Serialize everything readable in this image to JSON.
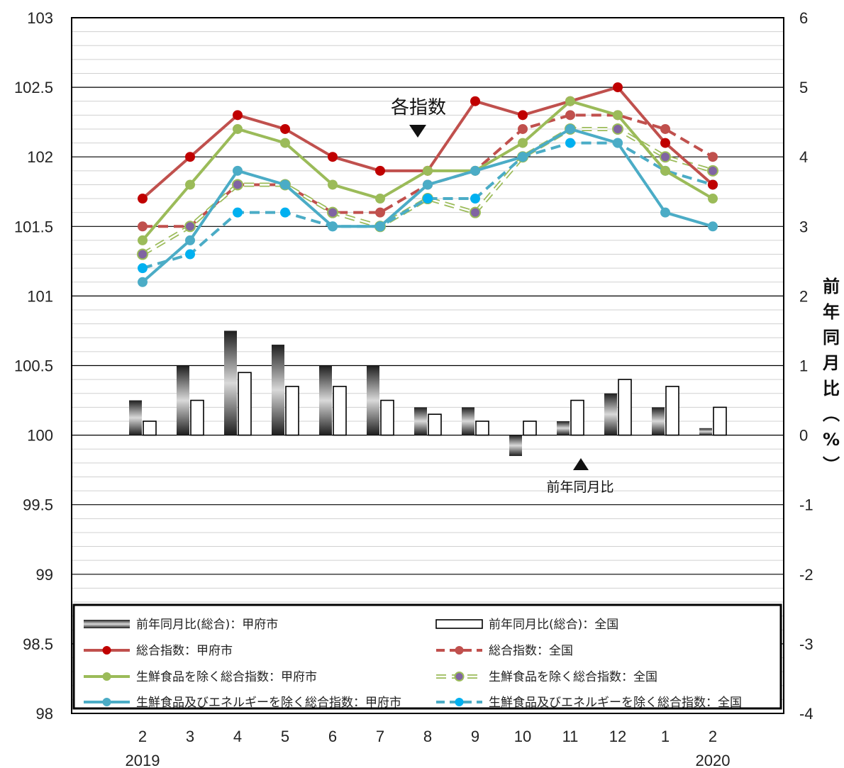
{
  "chart_data": {
    "type": "line",
    "categories": [
      "2",
      "3",
      "4",
      "5",
      "6",
      "7",
      "8",
      "9",
      "10",
      "11",
      "12",
      "1",
      "2"
    ],
    "year_labels": [
      "2019",
      "2020"
    ],
    "y_left": {
      "min": 98,
      "max": 103,
      "step": 0.5,
      "minor": 0.1,
      "ticks": [
        "98",
        "98.5",
        "99",
        "99.5",
        "100",
        "100.5",
        "101",
        "101.5",
        "102",
        "102.5",
        "103"
      ]
    },
    "y_right": {
      "min": -4,
      "max": 6,
      "step": 1,
      "ticks": [
        "-4",
        "-3",
        "-2",
        "-1",
        "0",
        "1",
        "2",
        "3",
        "4",
        "5",
        "6"
      ],
      "label_chars": [
        "前",
        "年",
        "同",
        "月",
        "比",
        "︵",
        "%",
        "︶"
      ]
    },
    "annotations": {
      "index": "各指数",
      "yoy": "前年同月比"
    },
    "series": [
      {
        "name": "総合指数：甲府市",
        "kind": "line",
        "axis": "left",
        "color": "#C0504D",
        "marker": "#C00000",
        "dash": false,
        "values": [
          101.7,
          102.0,
          102.3,
          102.2,
          102.0,
          101.9,
          101.9,
          102.4,
          102.3,
          102.4,
          102.5,
          102.1,
          101.8
        ]
      },
      {
        "name": "総合指数：全国",
        "kind": "line",
        "axis": "left",
        "color": "#C0504D",
        "marker": "#C0504D",
        "dash": true,
        "values": [
          101.5,
          101.5,
          101.8,
          101.8,
          101.6,
          101.6,
          101.8,
          101.9,
          102.2,
          102.3,
          102.3,
          102.2,
          102.0
        ]
      },
      {
        "name": "生鮮食品を除く総合指数：甲府市",
        "kind": "line",
        "axis": "left",
        "color": "#9BBB59",
        "marker": "#9BBB59",
        "dash": false,
        "values": [
          101.4,
          101.8,
          102.2,
          102.1,
          101.8,
          101.7,
          101.9,
          101.9,
          102.1,
          102.4,
          102.3,
          101.9,
          101.7
        ]
      },
      {
        "name": "生鮮食品を除く総合指数：全国",
        "kind": "line",
        "axis": "left",
        "color": "#9BBB59",
        "marker": "#8064A2",
        "dash": true,
        "hollow_line": true,
        "values": [
          101.3,
          101.5,
          101.8,
          101.8,
          101.6,
          101.5,
          101.7,
          101.6,
          102.0,
          102.2,
          102.2,
          102.0,
          101.9
        ]
      },
      {
        "name": "生鮮食品及びエネルギーを除く総合指数：甲府市",
        "kind": "line",
        "axis": "left",
        "color": "#4BACC6",
        "marker": "#4BACC6",
        "dash": false,
        "values": [
          101.1,
          101.4,
          101.9,
          101.8,
          101.5,
          101.5,
          101.8,
          101.9,
          102.0,
          102.2,
          102.1,
          101.6,
          101.5
        ]
      },
      {
        "name": "生鮮食品及びエネルギーを除く総合指数：全国",
        "kind": "line",
        "axis": "left",
        "color": "#4BACC6",
        "marker": "#00B0F0",
        "dash": true,
        "values": [
          101.2,
          101.3,
          101.6,
          101.6,
          101.5,
          101.5,
          101.7,
          101.7,
          102.0,
          102.1,
          102.1,
          101.9,
          101.8
        ]
      },
      {
        "name": "前年同月比(総合)：甲府市",
        "kind": "bar",
        "axis": "right",
        "color": "gradient",
        "values": [
          0.5,
          1.0,
          1.5,
          1.3,
          1.0,
          1.0,
          0.4,
          0.4,
          -0.3,
          0.2,
          0.6,
          0.4,
          0.1
        ]
      },
      {
        "name": "前年同月比(総合)：全国",
        "kind": "bar",
        "axis": "right",
        "color": "#ffffff",
        "values": [
          0.2,
          0.5,
          0.9,
          0.7,
          0.7,
          0.5,
          0.3,
          0.2,
          0.2,
          0.5,
          0.8,
          0.7,
          0.4
        ]
      }
    ],
    "legend_order": [
      6,
      7,
      0,
      1,
      2,
      3,
      4,
      5
    ],
    "legend_position": "bottom-inside",
    "grid": true
  }
}
